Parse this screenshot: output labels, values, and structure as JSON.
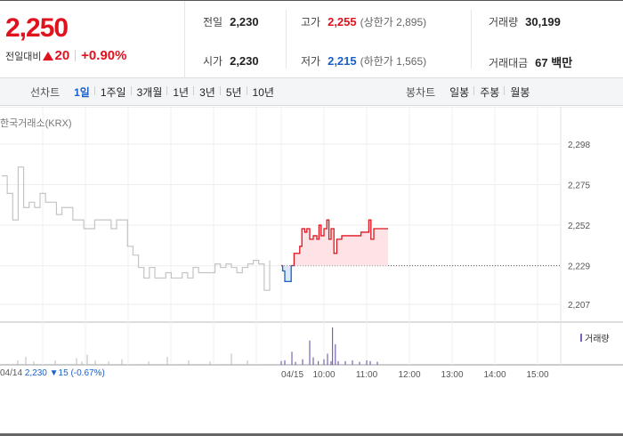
{
  "quote": {
    "price": "2,250",
    "change_label": "전일대비",
    "change_value": "20",
    "change_pct": "+0.90%"
  },
  "stats": {
    "prev_close": {
      "label": "전일",
      "value": "2,230"
    },
    "high": {
      "label": "고가",
      "value": "2,255",
      "sub": "(상한가 2,895)"
    },
    "volume": {
      "label": "거래량",
      "value": "30,199"
    },
    "open": {
      "label": "시가",
      "value": "2,230"
    },
    "low": {
      "label": "저가",
      "value": "2,215",
      "sub": "(하한가 1,565)"
    },
    "trade_value": {
      "label": "거래대금",
      "value": "67 백만"
    }
  },
  "line_chart_tabs": {
    "title": "선차트",
    "items": [
      "1일",
      "1주일",
      "3개월",
      "1년",
      "3년",
      "5년",
      "10년"
    ],
    "active": "1일"
  },
  "candle_chart_tabs": {
    "title": "봉차트",
    "items": [
      "일봉",
      "주봉",
      "월봉"
    ]
  },
  "exchange": "한국거래소(KRX)",
  "volume_legend": "거래량",
  "prev_day_note": {
    "date": "04/14",
    "close": "2,230",
    "change": "▼15",
    "change_pct": "(-0.67%)"
  },
  "colors": {
    "up": "#e0121e",
    "down": "#1a5fc9",
    "prev_line": "#c4c4c4",
    "volume": "#7a63b0"
  },
  "chart_data": {
    "type": "line",
    "ylim": [
      2200,
      2300
    ],
    "y_ticks": [
      "2,298",
      "2,275",
      "2,252",
      "2,229",
      "2,207"
    ],
    "y_tick_values": [
      2298,
      2275,
      2252,
      2229,
      2207
    ],
    "x_ticks": [
      "04/15",
      "10:00",
      "11:00",
      "12:00",
      "13:00",
      "14:00",
      "15:00"
    ],
    "baseline": 2229,
    "prev_day": {
      "date": "04/14",
      "values": [
        2280,
        2270,
        2255,
        2285,
        2262,
        2265,
        2262,
        2270,
        2265,
        2265,
        2258,
        2262,
        2262,
        2255,
        2255,
        2250,
        2250,
        2255,
        2255,
        2255,
        2250,
        2255,
        2255,
        2240,
        2235,
        2228,
        2222,
        2228,
        2222,
        2222,
        2225,
        2222,
        2222,
        2225,
        2222,
        2228,
        2225,
        2225,
        2225,
        2230,
        2228,
        2230,
        2228,
        2225,
        2228,
        2230,
        2232,
        2230,
        2215,
        2232
      ]
    },
    "today": {
      "date": "04/15",
      "series": [
        {
          "time": "09:00",
          "value": 2229
        },
        {
          "time": "09:02",
          "value": 2226
        },
        {
          "time": "09:05",
          "value": 2220
        },
        {
          "time": "09:10",
          "value": 2220
        },
        {
          "time": "09:14",
          "value": 2229
        },
        {
          "time": "09:18",
          "value": 2236
        },
        {
          "time": "09:22",
          "value": 2236
        },
        {
          "time": "09:26",
          "value": 2240
        },
        {
          "time": "09:29",
          "value": 2250
        },
        {
          "time": "09:33",
          "value": 2248
        },
        {
          "time": "09:36",
          "value": 2250
        },
        {
          "time": "09:40",
          "value": 2244
        },
        {
          "time": "09:45",
          "value": 2246
        },
        {
          "time": "09:50",
          "value": 2244
        },
        {
          "time": "09:53",
          "value": 2252
        },
        {
          "time": "09:56",
          "value": 2246
        },
        {
          "time": "10:00",
          "value": 2250
        },
        {
          "time": "10:04",
          "value": 2255
        },
        {
          "time": "10:07",
          "value": 2244
        },
        {
          "time": "10:10",
          "value": 2250
        },
        {
          "time": "10:14",
          "value": 2236
        },
        {
          "time": "10:18",
          "value": 2244
        },
        {
          "time": "10:25",
          "value": 2246
        },
        {
          "time": "10:35",
          "value": 2246
        },
        {
          "time": "10:45",
          "value": 2246
        },
        {
          "time": "10:52",
          "value": 2248
        },
        {
          "time": "11:00",
          "value": 2248
        },
        {
          "time": "11:03",
          "value": 2255
        },
        {
          "time": "11:06",
          "value": 2244
        },
        {
          "time": "11:10",
          "value": 2250
        },
        {
          "time": "11:20",
          "value": 2250
        },
        {
          "time": "11:30",
          "value": 2250
        }
      ]
    },
    "volume": {
      "series_name": "거래량",
      "bars": [
        {
          "t": 0.06,
          "v": 0.2
        },
        {
          "t": 0.09,
          "v": 0.35
        },
        {
          "t": 0.12,
          "v": 0.15
        },
        {
          "t": 0.2,
          "v": 0.2
        },
        {
          "t": 0.28,
          "v": 0.3
        },
        {
          "t": 0.3,
          "v": 0.15
        },
        {
          "t": 0.32,
          "v": 0.45
        },
        {
          "t": 0.35,
          "v": 0.2
        },
        {
          "t": 0.4,
          "v": 0.15
        },
        {
          "t": 0.45,
          "v": 0.25
        },
        {
          "t": 0.55,
          "v": 0.15
        },
        {
          "t": 0.62,
          "v": 0.35
        },
        {
          "t": 0.7,
          "v": 0.2
        },
        {
          "t": 0.78,
          "v": 0.15
        },
        {
          "t": 0.86,
          "v": 0.5
        },
        {
          "t": 0.92,
          "v": 0.2
        }
      ],
      "today_bars": [
        {
          "time": "09:00",
          "v": 0.1
        },
        {
          "time": "09:05",
          "v": 0.12
        },
        {
          "time": "09:15",
          "v": 0.35
        },
        {
          "time": "09:20",
          "v": 0.08
        },
        {
          "time": "09:30",
          "v": 0.15
        },
        {
          "time": "09:40",
          "v": 0.65
        },
        {
          "time": "09:45",
          "v": 0.2
        },
        {
          "time": "09:52",
          "v": 0.1
        },
        {
          "time": "10:00",
          "v": 0.15
        },
        {
          "time": "10:05",
          "v": 0.3
        },
        {
          "time": "10:10",
          "v": 0.1
        },
        {
          "time": "10:12",
          "v": 1.0
        },
        {
          "time": "10:16",
          "v": 0.55
        },
        {
          "time": "10:20",
          "v": 0.1
        },
        {
          "time": "10:30",
          "v": 0.1
        },
        {
          "time": "10:40",
          "v": 0.12
        },
        {
          "time": "10:50",
          "v": 0.08
        },
        {
          "time": "11:00",
          "v": 0.12
        },
        {
          "time": "11:05",
          "v": 0.1
        },
        {
          "time": "11:15",
          "v": 0.08
        }
      ]
    }
  }
}
